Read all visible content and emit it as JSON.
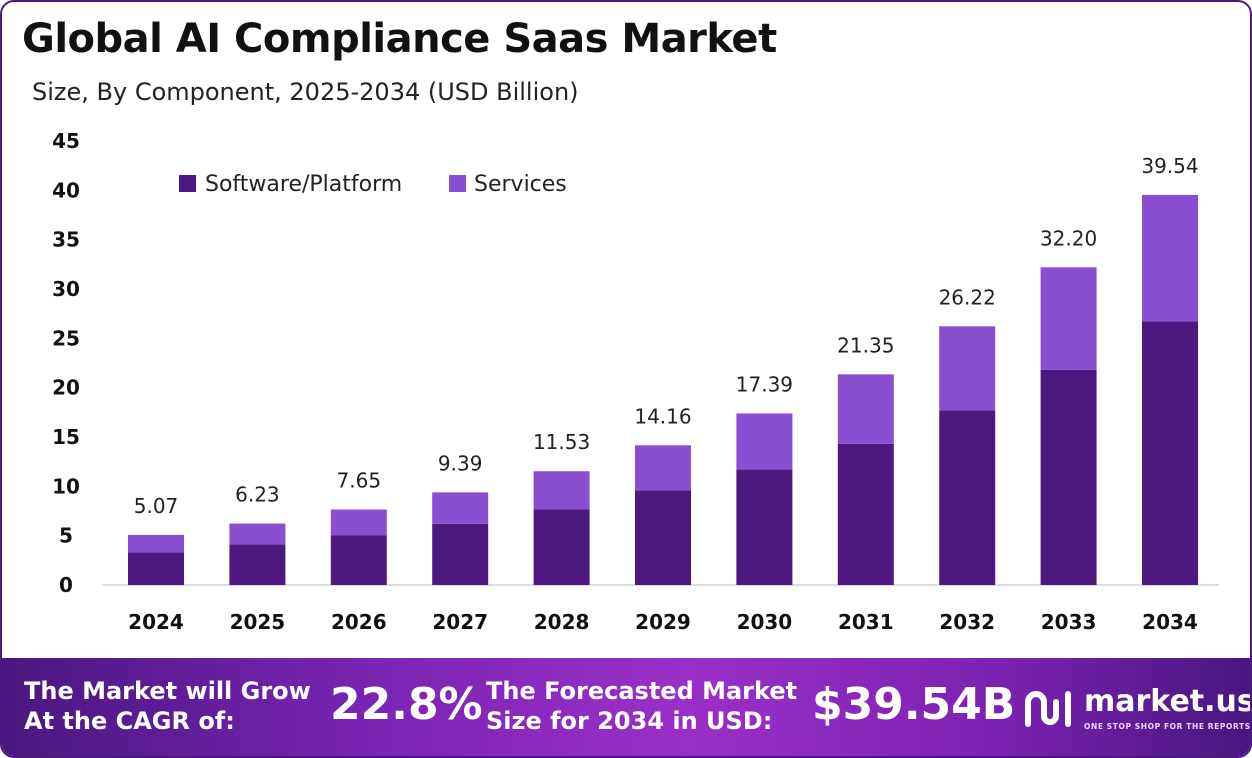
{
  "title": "Global AI Compliance Saas Market",
  "subtitle": "Size, By Component, 2025-2034 (USD Billion)",
  "colors": {
    "software": "#4d1880",
    "services": "#8a4fd0"
  },
  "chart_data": {
    "type": "bar",
    "stacked": true,
    "categories": [
      "2024",
      "2025",
      "2026",
      "2027",
      "2028",
      "2029",
      "2030",
      "2031",
      "2032",
      "2033",
      "2034"
    ],
    "series": [
      {
        "name": "Software/Platform",
        "values": [
          3.3,
          4.1,
          5.05,
          6.2,
          7.65,
          9.6,
          11.7,
          14.3,
          17.7,
          21.8,
          26.7
        ]
      },
      {
        "name": "Services",
        "values": [
          1.77,
          2.13,
          2.6,
          3.19,
          3.88,
          4.56,
          5.69,
          7.05,
          8.52,
          10.4,
          12.84
        ]
      }
    ],
    "totals": [
      "5.07",
      "6.23",
      "7.65",
      "9.39",
      "11.53",
      "14.16",
      "17.39",
      "21.35",
      "26.22",
      "32.20",
      "39.54"
    ],
    "y_ticks": [
      "0",
      "5",
      "10",
      "15",
      "20",
      "25",
      "30",
      "35",
      "40",
      "45"
    ],
    "ylim": [
      0,
      45
    ],
    "grid": false,
    "legend_position": "top-left"
  },
  "banner": {
    "cagr_text_line1": "The Market will Grow",
    "cagr_text_line2": "At the CAGR of:",
    "cagr_value": "22.8%",
    "forecast_text_line1": "The Forecasted Market",
    "forecast_text_line2": "Size for 2034 in USD:",
    "forecast_value": "$39.54B",
    "logo_name": "market.us",
    "logo_tagline": "ONE STOP SHOP FOR THE REPORTS",
    "logo_icon": "market-us-logo-icon"
  }
}
